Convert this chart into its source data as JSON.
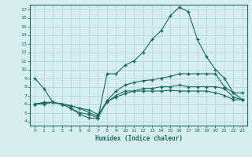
{
  "xlabel": "Humidex (Indice chaleur)",
  "bg_color": "#d6eeee",
  "line_color": "#1a6b5a",
  "grid_color": "#b8d8d8",
  "xlim_min": -0.5,
  "xlim_max": 23.5,
  "ylim_min": 3.5,
  "ylim_max": 17.5,
  "xticks": [
    0,
    1,
    2,
    3,
    4,
    5,
    6,
    7,
    8,
    9,
    10,
    11,
    12,
    13,
    14,
    15,
    16,
    17,
    18,
    19,
    20,
    21,
    22,
    23
  ],
  "yticks": [
    4,
    5,
    6,
    7,
    8,
    9,
    10,
    11,
    12,
    13,
    14,
    15,
    16,
    17
  ],
  "line1_x": [
    0,
    1,
    2,
    3,
    4,
    5,
    6,
    7,
    8,
    9,
    10,
    11,
    12,
    13,
    14,
    15,
    16,
    17,
    18,
    19,
    20,
    21,
    22,
    23
  ],
  "line1_y": [
    9.0,
    7.8,
    6.2,
    6.0,
    5.5,
    4.8,
    4.4,
    4.3,
    9.5,
    9.5,
    10.5,
    11.0,
    12.0,
    13.5,
    14.5,
    16.2,
    17.2,
    16.7,
    13.5,
    11.5,
    10.0,
    9.0,
    7.3,
    7.3
  ],
  "line2_x": [
    0,
    1,
    2,
    3,
    4,
    5,
    6,
    7,
    8,
    9,
    10,
    11,
    12,
    13,
    14,
    15,
    16,
    17,
    18,
    19,
    20,
    21,
    22,
    23
  ],
  "line2_y": [
    6.0,
    6.2,
    6.2,
    6.0,
    5.5,
    5.0,
    4.8,
    4.4,
    6.3,
    6.8,
    7.2,
    7.5,
    7.5,
    7.5,
    7.5,
    7.6,
    7.5,
    7.5,
    7.5,
    7.5,
    7.3,
    7.0,
    6.5,
    6.5
  ],
  "line3_x": [
    0,
    1,
    2,
    3,
    4,
    5,
    6,
    7,
    8,
    9,
    10,
    11,
    12,
    13,
    14,
    15,
    16,
    17,
    18,
    19,
    20,
    21,
    22,
    23
  ],
  "line3_y": [
    6.0,
    6.0,
    6.2,
    6.0,
    5.8,
    5.5,
    5.3,
    4.8,
    6.2,
    7.0,
    7.5,
    7.5,
    7.8,
    7.8,
    8.0,
    8.0,
    8.2,
    8.0,
    8.0,
    8.0,
    8.0,
    7.8,
    6.8,
    6.5
  ],
  "line4_x": [
    0,
    2,
    3,
    4,
    5,
    6,
    7,
    8,
    9,
    10,
    11,
    12,
    13,
    14,
    15,
    16,
    17,
    18,
    19,
    20,
    21,
    22,
    23
  ],
  "line4_y": [
    6.0,
    6.2,
    6.0,
    5.8,
    5.5,
    5.0,
    4.6,
    6.4,
    7.5,
    8.2,
    8.5,
    8.7,
    8.8,
    9.0,
    9.2,
    9.5,
    9.5,
    9.5,
    9.5,
    9.5,
    8.0,
    7.3,
    6.5
  ]
}
